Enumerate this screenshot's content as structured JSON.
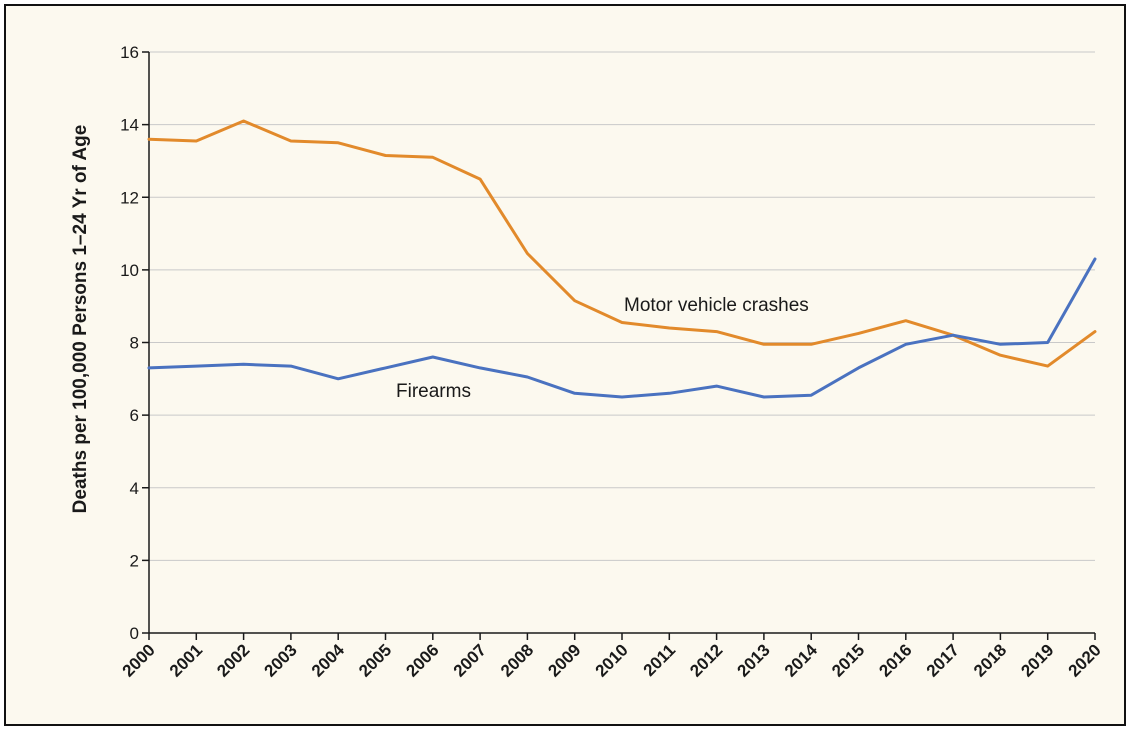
{
  "chart_data": {
    "type": "line",
    "title": "",
    "xlabel": "",
    "ylabel": "Deaths per 100,000 Persons 1–24 Yr of Age",
    "ylim": [
      0,
      16
    ],
    "yticks": [
      0,
      2,
      4,
      6,
      8,
      10,
      12,
      14,
      16
    ],
    "grid": true,
    "categories": [
      "2000",
      "2001",
      "2002",
      "2003",
      "2004",
      "2005",
      "2006",
      "2007",
      "2008",
      "2009",
      "2010",
      "2011",
      "2012",
      "2013",
      "2014",
      "2015",
      "2016",
      "2017",
      "2018",
      "2019",
      "2020"
    ],
    "series": [
      {
        "name": "Motor vehicle crashes",
        "color": "#e28a2b",
        "values": [
          13.6,
          13.55,
          14.1,
          13.55,
          13.5,
          13.15,
          13.1,
          12.5,
          10.45,
          9.15,
          8.55,
          8.4,
          8.3,
          7.95,
          7.95,
          8.25,
          8.6,
          8.2,
          7.65,
          7.35,
          8.3
        ]
      },
      {
        "name": "Firearms",
        "color": "#4a72c0",
        "values": [
          7.3,
          7.35,
          7.4,
          7.35,
          7.0,
          7.3,
          7.6,
          7.3,
          7.05,
          6.6,
          6.5,
          6.6,
          6.8,
          6.5,
          6.55,
          7.3,
          7.95,
          8.2,
          7.95,
          8.0,
          10.3
        ]
      }
    ]
  }
}
